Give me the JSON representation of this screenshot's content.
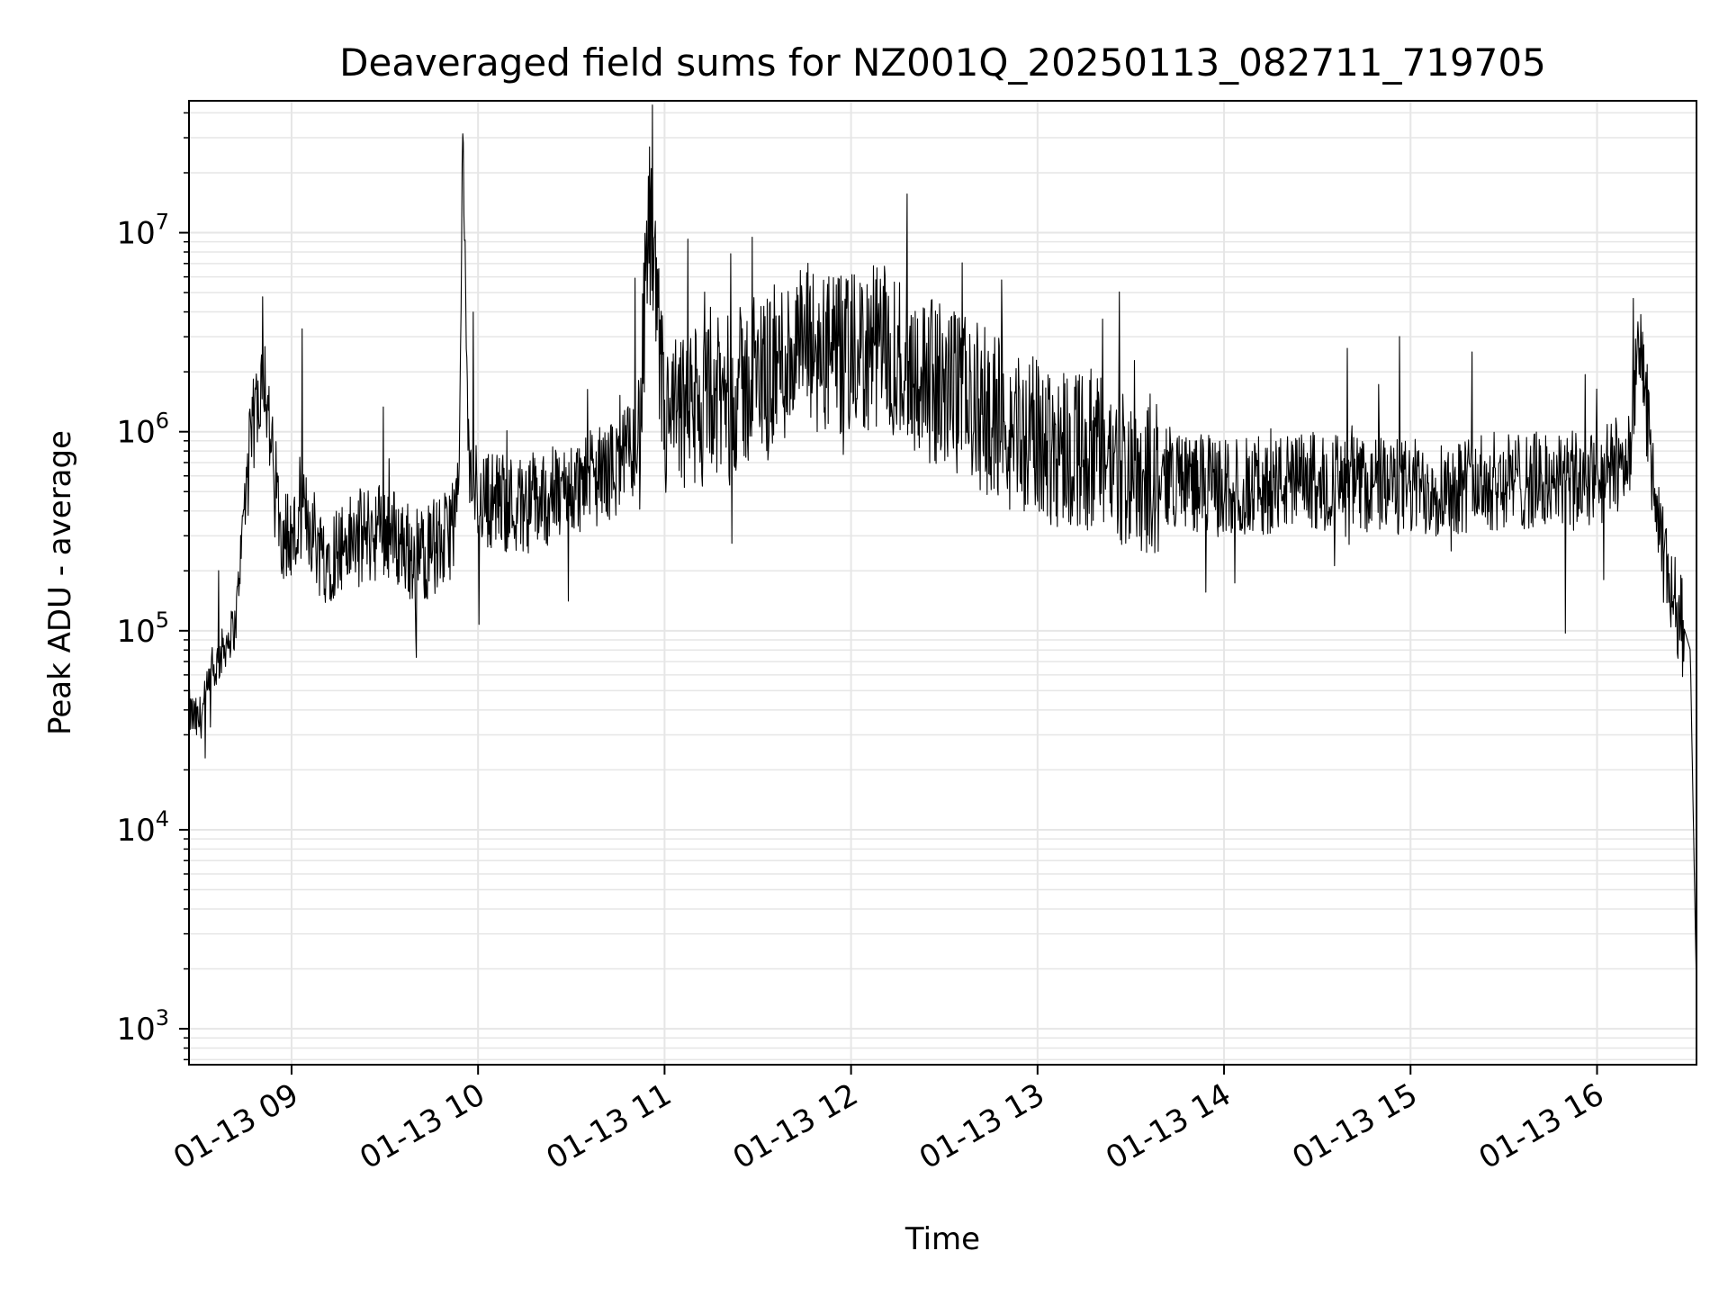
{
  "chart_data": {
    "type": "line",
    "title": "Deaveraged field sums for NZ001Q_20250113_082711_719705",
    "xlabel": "Time",
    "ylabel": "Peak ADU - average",
    "yscale": "log",
    "ylim": [
      660,
      46000000
    ],
    "xlim": [
      "2025-01-13 08:27",
      "2025-01-13 16:32"
    ],
    "grid": true,
    "line_color": "#000000",
    "grid_color": "#e6e6e6",
    "x_ticks": [
      {
        "t": "2025-01-13 09:00",
        "label": "01-13 09"
      },
      {
        "t": "2025-01-13 10:00",
        "label": "01-13 10"
      },
      {
        "t": "2025-01-13 11:00",
        "label": "01-13 11"
      },
      {
        "t": "2025-01-13 12:00",
        "label": "01-13 12"
      },
      {
        "t": "2025-01-13 13:00",
        "label": "01-13 13"
      },
      {
        "t": "2025-01-13 14:00",
        "label": "01-13 14"
      },
      {
        "t": "2025-01-13 15:00",
        "label": "01-13 15"
      },
      {
        "t": "2025-01-13 16:00",
        "label": "01-13 16"
      }
    ],
    "y_ticks": [
      {
        "value": 1000,
        "base": "10",
        "exp": "3"
      },
      {
        "value": 10000,
        "base": "10",
        "exp": "4"
      },
      {
        "value": 100000,
        "base": "10",
        "exp": "5"
      },
      {
        "value": 1000000,
        "base": "10",
        "exp": "6"
      },
      {
        "value": 10000000,
        "base": "10",
        "exp": "7"
      }
    ],
    "series": [
      {
        "x": [
          "2025-01-13 08:27",
          "2025-01-13 08:30",
          "2025-01-13 08:33",
          "2025-01-13 08:36",
          "2025-01-13 08:39",
          "2025-01-13 08:42",
          "2025-01-13 08:45",
          "2025-01-13 08:48",
          "2025-01-13 08:51",
          "2025-01-13 08:54",
          "2025-01-13 08:57",
          "2025-01-13 09:00",
          "2025-01-13 09:05",
          "2025-01-13 09:10",
          "2025-01-13 09:20",
          "2025-01-13 09:30",
          "2025-01-13 09:40",
          "2025-01-13 09:50",
          "2025-01-13 09:54",
          "2025-01-13 09:55",
          "2025-01-13 09:57",
          "2025-01-13 10:00",
          "2025-01-13 10:15",
          "2025-01-13 10:30",
          "2025-01-13 10:45",
          "2025-01-13 10:52",
          "2025-01-13 10:55",
          "2025-01-13 11:00",
          "2025-01-13 11:15",
          "2025-01-13 11:30",
          "2025-01-13 11:45",
          "2025-01-13 11:58",
          "2025-01-13 12:10",
          "2025-01-13 12:25",
          "2025-01-13 12:40",
          "2025-01-13 12:50",
          "2025-01-13 13:00",
          "2025-01-13 13:15",
          "2025-01-13 13:30",
          "2025-01-13 14:00",
          "2025-01-13 14:30",
          "2025-01-13 15:00",
          "2025-01-13 15:30",
          "2025-01-13 16:00",
          "2025-01-13 16:10",
          "2025-01-13 16:14",
          "2025-01-13 16:20",
          "2025-01-13 16:25",
          "2025-01-13 16:30",
          "2025-01-13 16:32"
        ],
        "y": [
          40000,
          35000,
          50000,
          70000,
          90000,
          110000,
          500000,
          1200000,
          2400000,
          700000,
          350000,
          300000,
          400000,
          250000,
          300000,
          350000,
          250000,
          300000,
          500000,
          28000000,
          700000,
          500000,
          450000,
          550000,
          700000,
          1000000,
          13000000,
          1200000,
          1500000,
          2000000,
          3000000,
          2500000,
          3000000,
          2000000,
          1500000,
          1200000,
          1000000,
          900000,
          700000,
          550000,
          600000,
          550000,
          600000,
          600000,
          800000,
          3000000,
          300000,
          150000,
          80000,
          1500
        ]
      }
    ]
  }
}
